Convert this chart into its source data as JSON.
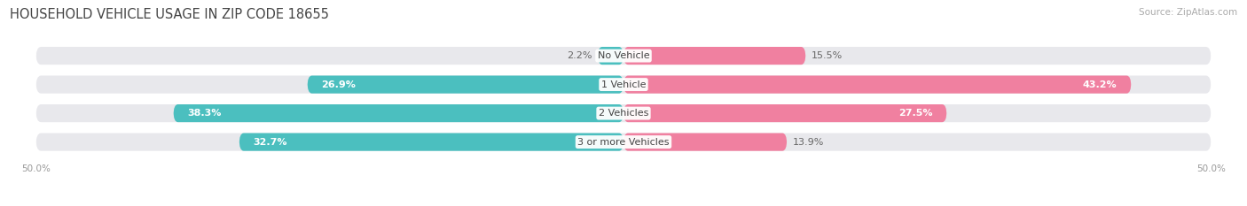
{
  "title": "HOUSEHOLD VEHICLE USAGE IN ZIP CODE 18655",
  "source": "Source: ZipAtlas.com",
  "categories": [
    "No Vehicle",
    "1 Vehicle",
    "2 Vehicles",
    "3 or more Vehicles"
  ],
  "owner_values": [
    2.2,
    26.9,
    38.3,
    32.7
  ],
  "renter_values": [
    15.5,
    43.2,
    27.5,
    13.9
  ],
  "owner_color": "#4bbfbf",
  "renter_color": "#f080a0",
  "bg_color": "#ffffff",
  "bar_bg_color": "#e8e8ec",
  "title_fontsize": 10.5,
  "source_fontsize": 7.5,
  "value_fontsize": 8.0,
  "cat_fontsize": 8.0,
  "bar_height": 0.62,
  "x_max": 50.0
}
